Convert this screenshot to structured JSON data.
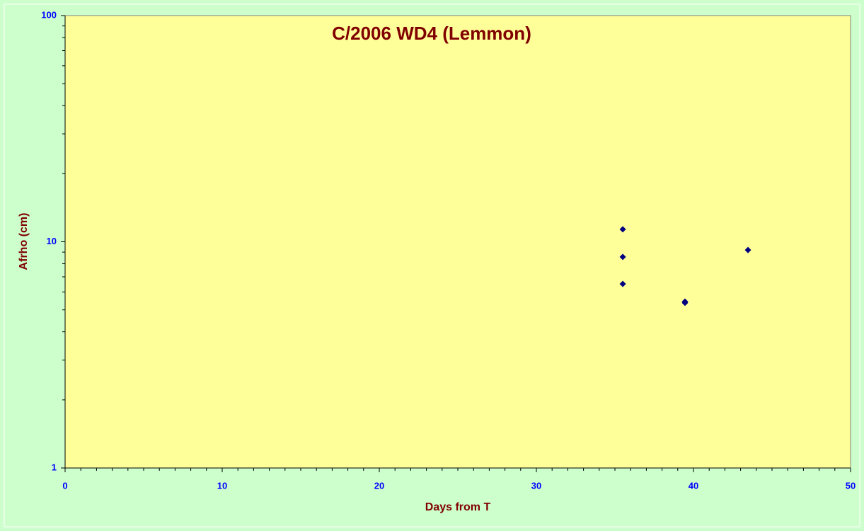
{
  "chart_data": {
    "type": "scatter",
    "title": "C/2006 WD4 (Lemmon)",
    "xlabel": "Days from T",
    "ylabel": "Afrho (cm)",
    "x": [
      35.5,
      35.5,
      35.5,
      39.46,
      39.46,
      43.47
    ],
    "values": [
      11.35,
      8.57,
      6.51,
      5.44,
      5.37,
      9.2
    ],
    "color": "#000080",
    "xlim": [
      0,
      50
    ],
    "xticks": [
      0,
      10,
      20,
      30,
      40,
      50
    ],
    "xminorticks": [
      1,
      2,
      3,
      4,
      5,
      6,
      7,
      8,
      9,
      11,
      12,
      13,
      14,
      15,
      16,
      17,
      18,
      19,
      21,
      22,
      23,
      24,
      25,
      26,
      27,
      28,
      29,
      31,
      32,
      33,
      34,
      35,
      36,
      37,
      38,
      39,
      41,
      42,
      43,
      44,
      45,
      46,
      47,
      48,
      49
    ],
    "ylim": [
      1,
      100
    ],
    "yticks": [
      1,
      10,
      100
    ],
    "yminorticks": [
      2,
      3,
      4,
      5,
      6,
      7,
      8,
      9,
      20,
      30,
      40,
      50,
      60,
      70,
      80,
      90
    ],
    "yscale": "log",
    "grid": false,
    "background": "#ccffcc",
    "plot_background": "#ffff99",
    "title_color": "#800000",
    "tick_color": "#0000ff"
  }
}
